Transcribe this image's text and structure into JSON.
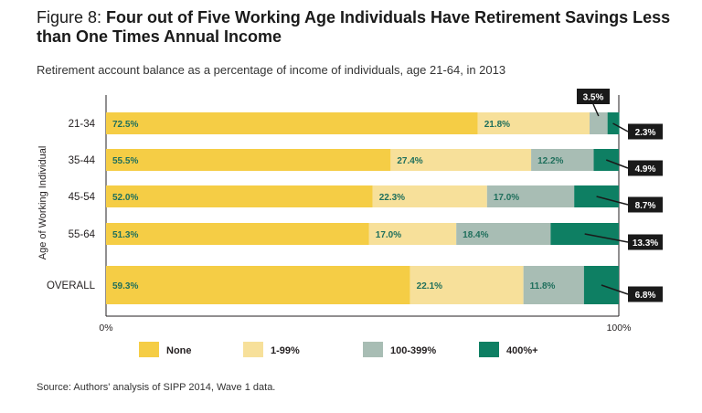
{
  "header": {
    "figure_label": "Figure 8: ",
    "title": "Four out of Five Working Age Individuals Have Retirement Savings Less than One Times Annual Income",
    "subtitle": "Retirement account balance as a percentage of income of individuals, age 21-64, in 2013"
  },
  "footer": {
    "source": "Source: Authors' analysis of SIPP 2014, Wave 1 data."
  },
  "colors": {
    "none": "#f5cd45",
    "low": "#f7e09a",
    "mid": "#a8bdb4",
    "high": "#0e7f63",
    "callout_bg": "#1a1a1a"
  },
  "chart_data": {
    "type": "bar",
    "orientation": "horizontal",
    "stacked": true,
    "categories": [
      "21-34",
      "35-44",
      "45-54",
      "55-64",
      "OVERALL"
    ],
    "series": [
      {
        "name": "None",
        "values": [
          72.5,
          55.5,
          52.0,
          51.3,
          59.3
        ],
        "labels": [
          "72.5%",
          "55.5%",
          "52.0%",
          "51.3%",
          "59.3%"
        ]
      },
      {
        "name": "1-99%",
        "values": [
          21.8,
          27.4,
          22.3,
          17.0,
          22.1
        ],
        "labels": [
          "21.8%",
          "27.4%",
          "22.3%",
          "17.0%",
          "22.1%"
        ]
      },
      {
        "name": "100-399%",
        "values": [
          3.5,
          12.2,
          17.0,
          18.4,
          11.8
        ],
        "labels": [
          "3.5%",
          "12.2%",
          "17.0%",
          "18.4%",
          "11.8%"
        ]
      },
      {
        "name": "400%+",
        "values": [
          2.3,
          4.9,
          8.7,
          13.3,
          6.8
        ],
        "labels": [
          "2.3%",
          "4.9%",
          "8.7%",
          "13.3%",
          "6.8%"
        ]
      }
    ],
    "ylabel": "Age of Working Individual",
    "xlim": [
      0,
      100
    ],
    "x_ticks": [
      "0%",
      "100%"
    ],
    "legend_position": "bottom",
    "grid": false
  }
}
